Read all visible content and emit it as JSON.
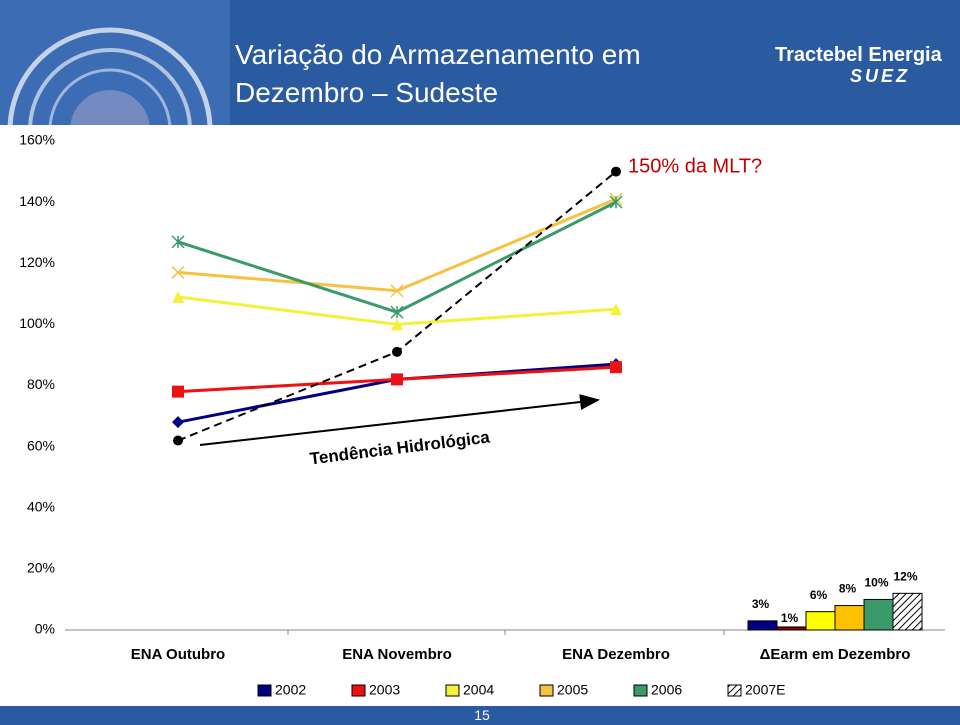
{
  "header": {
    "title": "Variação do Armazenamento em Dezembro – Sudeste",
    "logo": "Tractebel Energia",
    "logo_sub": "SUEZ"
  },
  "page_number": 15,
  "chart_data": [
    {
      "type": "line",
      "categories": [
        "ENA Outubro",
        "ENA Novembro",
        "ENA Dezembro"
      ],
      "ylim": [
        0,
        160
      ],
      "yticks": [
        {
          "value": 0,
          "label": "0%"
        },
        {
          "value": 20,
          "label": "20%"
        },
        {
          "value": 40,
          "label": "40%"
        },
        {
          "value": 60,
          "label": "60%"
        },
        {
          "value": 80,
          "label": "80%"
        },
        {
          "value": 100,
          "label": "100%"
        },
        {
          "value": 120,
          "label": "120%"
        },
        {
          "value": 140,
          "label": "140%"
        },
        {
          "value": 160,
          "label": "160%"
        }
      ],
      "grid": false,
      "annotations": [
        "150% da MLT?",
        "Tendência Hidrológica"
      ],
      "series": [
        {
          "name": "2002",
          "color": "#000080",
          "marker": "diamond",
          "values": [
            68,
            82,
            87
          ]
        },
        {
          "name": "2003",
          "color": "#ee1111",
          "marker": "square",
          "values": [
            78,
            82,
            86
          ]
        },
        {
          "name": "2004",
          "color": "#f5f03a",
          "marker": "triangle",
          "values": [
            109,
            100,
            105
          ]
        },
        {
          "name": "2005",
          "color": "#f5c242",
          "marker": "x",
          "values": [
            117,
            111,
            141
          ]
        },
        {
          "name": "2006",
          "color": "#3a9a6a",
          "marker": "asterisk",
          "values": [
            127,
            104,
            140
          ]
        },
        {
          "name": "2007E",
          "color": "#000000",
          "marker": "circle",
          "dashed": true,
          "legend_pattern": "hatched",
          "values": [
            62,
            91,
            150
          ]
        }
      ]
    },
    {
      "type": "bar",
      "category": "ΔEarm em Dezembro",
      "ylim": [
        0,
        160
      ],
      "values": [
        3,
        1,
        6,
        8,
        10,
        12
      ],
      "value_labels": [
        "3%",
        "1%",
        "6%",
        "8%",
        "10%",
        "12%"
      ],
      "colors": [
        "#000080",
        "#8b0000",
        "#ffff00",
        "#ffc000",
        "#3a9a6a",
        "#ffffff"
      ],
      "patterns": [
        "solid",
        "solid",
        "solid",
        "solid",
        "solid",
        "hatched"
      ]
    }
  ]
}
